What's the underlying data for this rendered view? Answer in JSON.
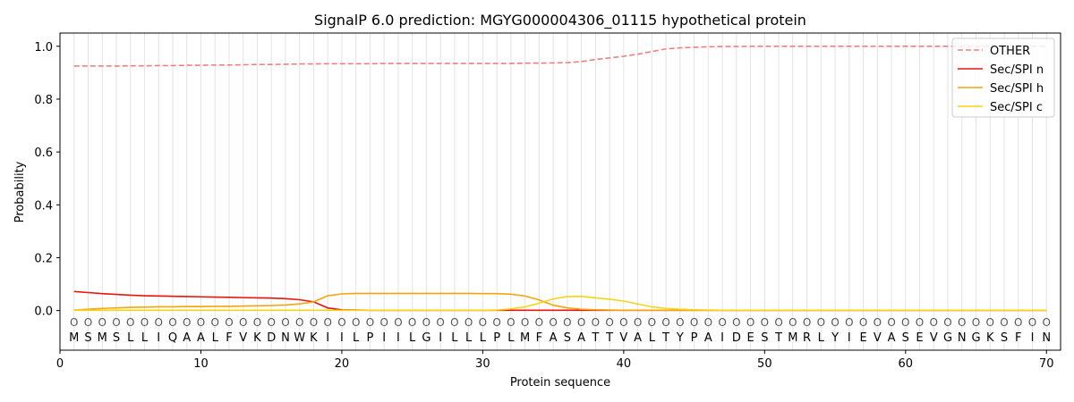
{
  "chart_data": {
    "type": "line",
    "title": "SignalP 6.0 prediction: MGYG000004306_01115 hypothetical protein",
    "xlabel": "Protein sequence",
    "ylabel": "Probability",
    "xlim": [
      0,
      71
    ],
    "ylim": [
      -0.15,
      1.05
    ],
    "x_ticks": [
      0,
      10,
      20,
      30,
      40,
      50,
      60,
      70
    ],
    "y_ticks": [
      0.0,
      0.2,
      0.4,
      0.6,
      0.8,
      1.0
    ],
    "y_tick_labels": [
      "0.0",
      "0.2",
      "0.4",
      "0.6",
      "0.8",
      "1.0"
    ],
    "legend_position": "top-right",
    "sequence": [
      "M",
      "S",
      "M",
      "S",
      "L",
      "L",
      "I",
      "Q",
      "A",
      "A",
      "L",
      "F",
      "V",
      "K",
      "D",
      "N",
      "W",
      "K",
      "I",
      "I",
      "L",
      "P",
      "I",
      "I",
      "L",
      "G",
      "I",
      "L",
      "L",
      "L",
      "P",
      "L",
      "M",
      "F",
      "A",
      "S",
      "A",
      "T",
      "T",
      "V",
      "A",
      "L",
      "T",
      "Y",
      "P",
      "A",
      "I",
      "D",
      "E",
      "S",
      "T",
      "M",
      "R",
      "L",
      "Y",
      "I",
      "E",
      "V",
      "A",
      "S",
      "E",
      "V",
      "G",
      "N",
      "G",
      "K",
      "S",
      "F",
      "I",
      "N"
    ],
    "region_label": "O",
    "series": [
      {
        "name": "OTHER",
        "color": "#f08080",
        "dashed": true,
        "values": [
          0.925,
          0.925,
          0.925,
          0.925,
          0.926,
          0.926,
          0.927,
          0.927,
          0.928,
          0.928,
          0.929,
          0.929,
          0.93,
          0.931,
          0.931,
          0.932,
          0.933,
          0.933,
          0.934,
          0.934,
          0.934,
          0.934,
          0.935,
          0.935,
          0.935,
          0.935,
          0.935,
          0.935,
          0.935,
          0.935,
          0.935,
          0.935,
          0.936,
          0.936,
          0.937,
          0.938,
          0.942,
          0.95,
          0.956,
          0.962,
          0.97,
          0.98,
          0.99,
          0.994,
          0.996,
          0.998,
          0.999,
          0.999,
          1.0,
          1.0,
          1.0,
          1.0,
          1.0,
          1.0,
          1.0,
          1.0,
          1.0,
          1.0,
          1.0,
          1.0,
          1.0,
          1.0,
          1.0,
          1.0,
          1.0,
          1.0,
          1.0,
          1.0,
          1.0,
          1.0
        ]
      },
      {
        "name": "Sec/SPI n",
        "color": "#e8160c",
        "dashed": false,
        "values": [
          0.072,
          0.068,
          0.064,
          0.061,
          0.058,
          0.056,
          0.055,
          0.054,
          0.053,
          0.052,
          0.051,
          0.05,
          0.049,
          0.048,
          0.047,
          0.045,
          0.041,
          0.033,
          0.01,
          0.003,
          0.002,
          0.001,
          0.001,
          0.001,
          0.001,
          0.001,
          0.001,
          0.001,
          0.001,
          0.001,
          0.001,
          0.001,
          0.001,
          0.001,
          0.001,
          0.001,
          0.001,
          0.001,
          0.001,
          0.001,
          0.001,
          0.001,
          0.001,
          0.001,
          0.001,
          0.001,
          0.001,
          0.001,
          0.001,
          0.001,
          0.001,
          0.001,
          0.001,
          0.001,
          0.001,
          0.001,
          0.001,
          0.001,
          0.001,
          0.001,
          0.001,
          0.001,
          0.001,
          0.001,
          0.001,
          0.001,
          0.001,
          0.001,
          0.001,
          0.001
        ]
      },
      {
        "name": "Sec/SPI h",
        "color": "#f5a40c",
        "dashed": false,
        "values": [
          0.002,
          0.005,
          0.008,
          0.01,
          0.012,
          0.013,
          0.014,
          0.014,
          0.015,
          0.015,
          0.016,
          0.016,
          0.017,
          0.018,
          0.019,
          0.021,
          0.025,
          0.033,
          0.056,
          0.063,
          0.065,
          0.065,
          0.065,
          0.065,
          0.065,
          0.065,
          0.065,
          0.065,
          0.065,
          0.064,
          0.064,
          0.062,
          0.055,
          0.04,
          0.02,
          0.01,
          0.005,
          0.003,
          0.002,
          0.001,
          0.001,
          0.001,
          0.001,
          0.001,
          0.001,
          0.001,
          0.001,
          0.001,
          0.001,
          0.001,
          0.001,
          0.001,
          0.001,
          0.001,
          0.001,
          0.001,
          0.001,
          0.001,
          0.001,
          0.001,
          0.001,
          0.001,
          0.001,
          0.001,
          0.001,
          0.001,
          0.001,
          0.001,
          0.001,
          0.001
        ]
      },
      {
        "name": "Sec/SPI c",
        "color": "#f7d417",
        "dashed": false,
        "values": [
          0.001,
          0.001,
          0.001,
          0.001,
          0.001,
          0.001,
          0.001,
          0.001,
          0.001,
          0.001,
          0.001,
          0.001,
          0.001,
          0.001,
          0.001,
          0.001,
          0.001,
          0.001,
          0.001,
          0.001,
          0.001,
          0.001,
          0.001,
          0.001,
          0.001,
          0.001,
          0.001,
          0.001,
          0.001,
          0.001,
          0.002,
          0.006,
          0.014,
          0.028,
          0.044,
          0.053,
          0.054,
          0.048,
          0.043,
          0.036,
          0.025,
          0.014,
          0.008,
          0.005,
          0.003,
          0.002,
          0.001,
          0.001,
          0.001,
          0.001,
          0.001,
          0.001,
          0.001,
          0.001,
          0.001,
          0.001,
          0.001,
          0.001,
          0.001,
          0.001,
          0.001,
          0.001,
          0.001,
          0.001,
          0.001,
          0.001,
          0.001,
          0.001,
          0.001,
          0.001
        ]
      }
    ]
  }
}
